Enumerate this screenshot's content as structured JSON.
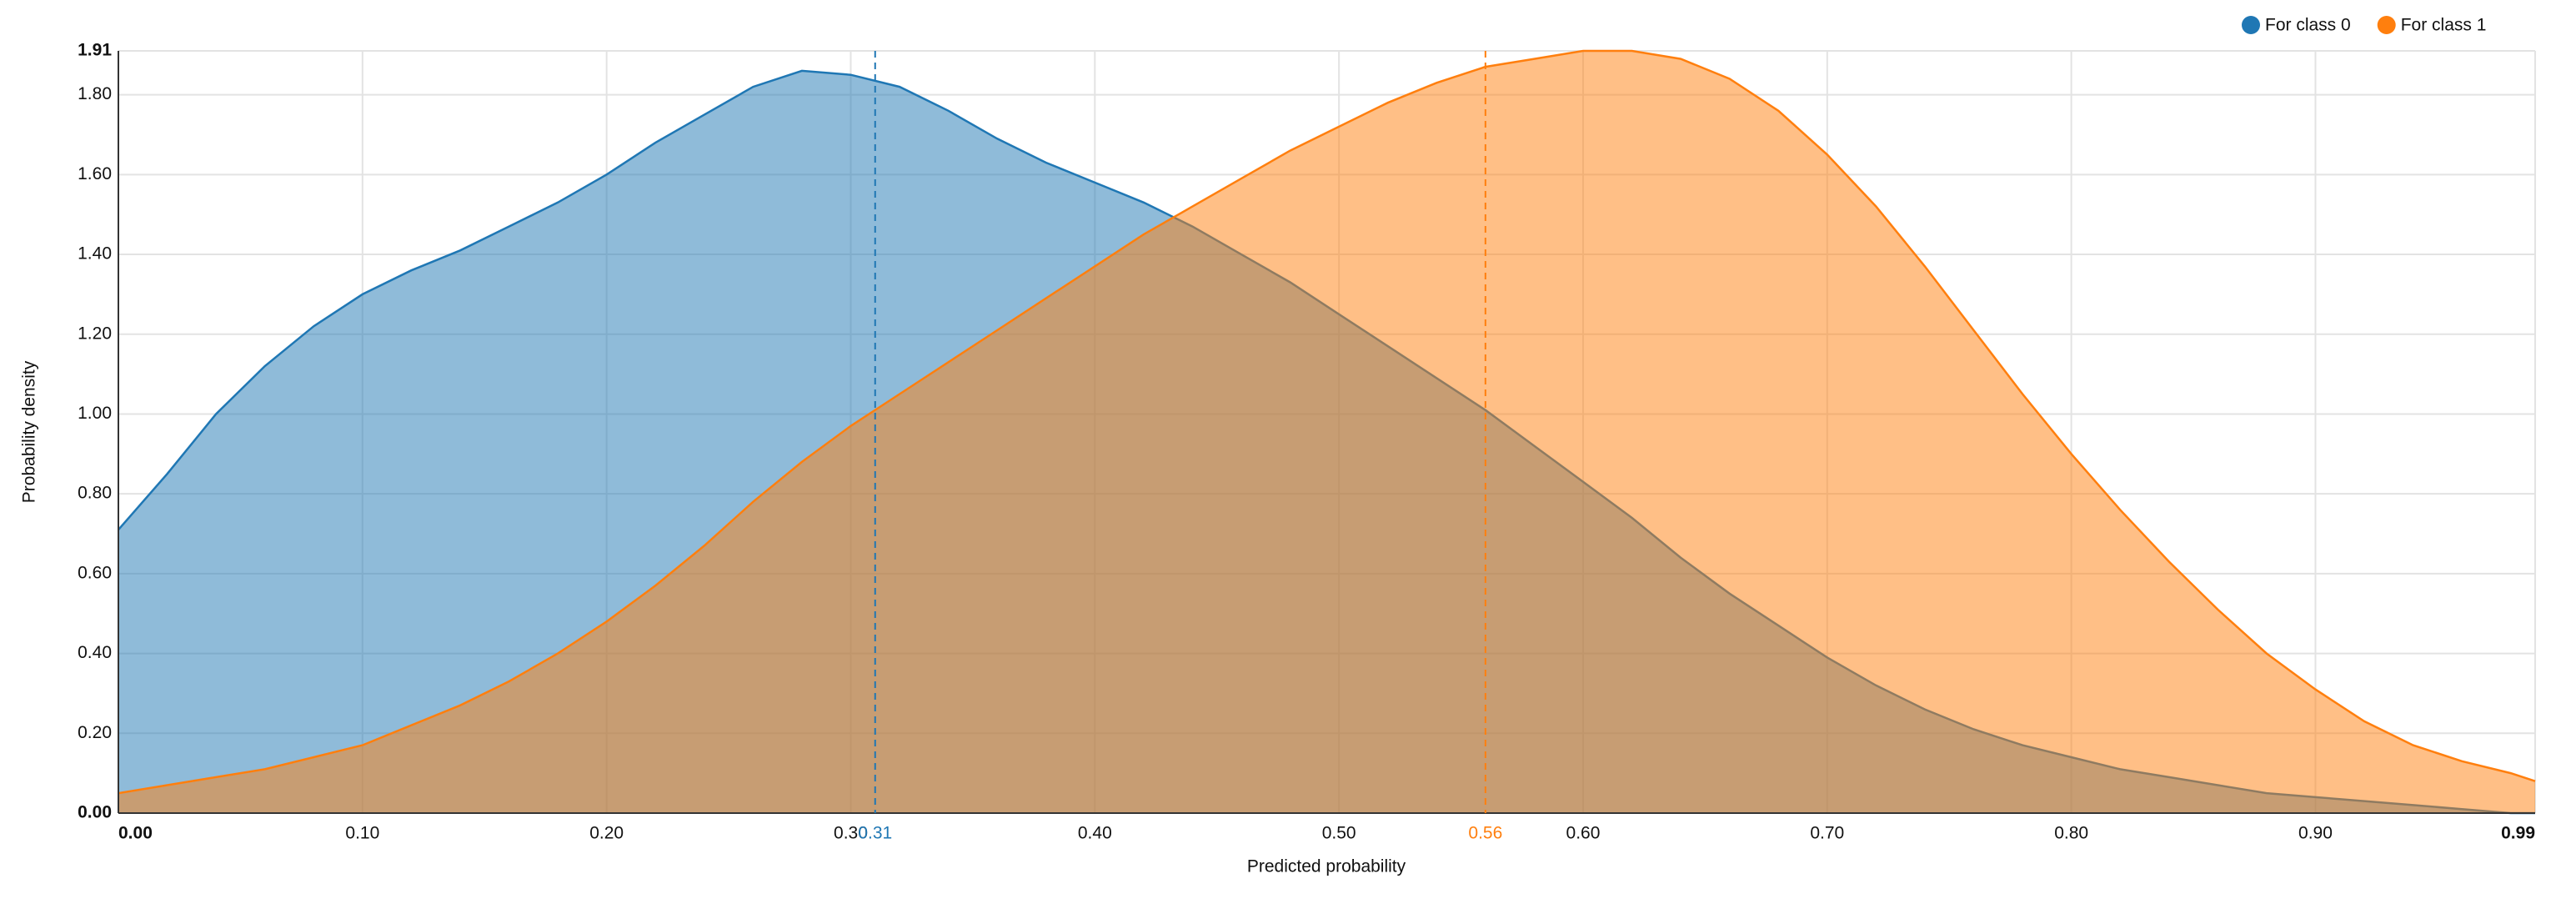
{
  "chart_data": {
    "type": "area",
    "xlabel": "Predicted probability",
    "ylabel": "Probability density",
    "x": [
      0.0,
      0.02,
      0.04,
      0.06,
      0.08,
      0.1,
      0.12,
      0.14,
      0.16,
      0.18,
      0.2,
      0.22,
      0.24,
      0.26,
      0.28,
      0.3,
      0.32,
      0.34,
      0.36,
      0.38,
      0.4,
      0.42,
      0.44,
      0.46,
      0.48,
      0.5,
      0.52,
      0.54,
      0.56,
      0.58,
      0.6,
      0.62,
      0.64,
      0.66,
      0.68,
      0.7,
      0.72,
      0.74,
      0.76,
      0.78,
      0.8,
      0.82,
      0.84,
      0.86,
      0.88,
      0.9,
      0.92,
      0.94,
      0.96,
      0.98,
      0.99
    ],
    "series": [
      {
        "name": "For class 0",
        "color": "#1f77b4",
        "values": [
          0.71,
          0.85,
          1.0,
          1.12,
          1.22,
          1.3,
          1.36,
          1.41,
          1.47,
          1.53,
          1.6,
          1.68,
          1.75,
          1.82,
          1.86,
          1.85,
          1.82,
          1.76,
          1.69,
          1.63,
          1.58,
          1.53,
          1.47,
          1.4,
          1.33,
          1.25,
          1.17,
          1.09,
          1.01,
          0.92,
          0.83,
          0.74,
          0.64,
          0.55,
          0.47,
          0.39,
          0.32,
          0.26,
          0.21,
          0.17,
          0.14,
          0.11,
          0.09,
          0.07,
          0.05,
          0.04,
          0.03,
          0.02,
          0.01,
          0.0,
          0.0
        ]
      },
      {
        "name": "For class 1",
        "color": "#ff7f0e",
        "values": [
          0.05,
          0.07,
          0.09,
          0.11,
          0.14,
          0.17,
          0.22,
          0.27,
          0.33,
          0.4,
          0.48,
          0.57,
          0.67,
          0.78,
          0.88,
          0.97,
          1.05,
          1.13,
          1.21,
          1.29,
          1.37,
          1.45,
          1.52,
          1.59,
          1.66,
          1.72,
          1.78,
          1.83,
          1.87,
          1.89,
          1.91,
          1.91,
          1.89,
          1.84,
          1.76,
          1.65,
          1.52,
          1.37,
          1.21,
          1.05,
          0.9,
          0.76,
          0.63,
          0.51,
          0.4,
          0.31,
          0.23,
          0.17,
          0.13,
          0.1,
          0.08
        ]
      }
    ],
    "markers": [
      {
        "value": 0.31,
        "color": "#1f77b4"
      },
      {
        "value": 0.56,
        "color": "#ff7f0e"
      }
    ],
    "xlim": [
      0,
      0.99
    ],
    "ylim": [
      0,
      1.91
    ],
    "xticks": [
      {
        "value": 0,
        "label": "0.00"
      },
      {
        "value": 0.1,
        "label": "0.10"
      },
      {
        "value": 0.2,
        "label": "0.20"
      },
      {
        "value": 0.3,
        "label": "0.30"
      },
      {
        "value": 0.4,
        "label": "0.40"
      },
      {
        "value": 0.5,
        "label": "0.50"
      },
      {
        "value": 0.6,
        "label": "0.60"
      },
      {
        "value": 0.7,
        "label": "0.70"
      },
      {
        "value": 0.8,
        "label": "0.80"
      },
      {
        "value": 0.9,
        "label": "0.90"
      },
      {
        "value": 0.99,
        "label": "0.99"
      }
    ],
    "yticks": [
      {
        "value": 0,
        "label": "0.00"
      },
      {
        "value": 0.2,
        "label": "0.20"
      },
      {
        "value": 0.4,
        "label": "0.40"
      },
      {
        "value": 0.6,
        "label": "0.60"
      },
      {
        "value": 0.8,
        "label": "0.80"
      },
      {
        "value": 1.0,
        "label": "1.00"
      },
      {
        "value": 1.2,
        "label": "1.20"
      },
      {
        "value": 1.4,
        "label": "1.40"
      },
      {
        "value": 1.6,
        "label": "1.60"
      },
      {
        "value": 1.8,
        "label": "1.80"
      },
      1.91
    ],
    "grid": true,
    "legend": "top-right"
  }
}
